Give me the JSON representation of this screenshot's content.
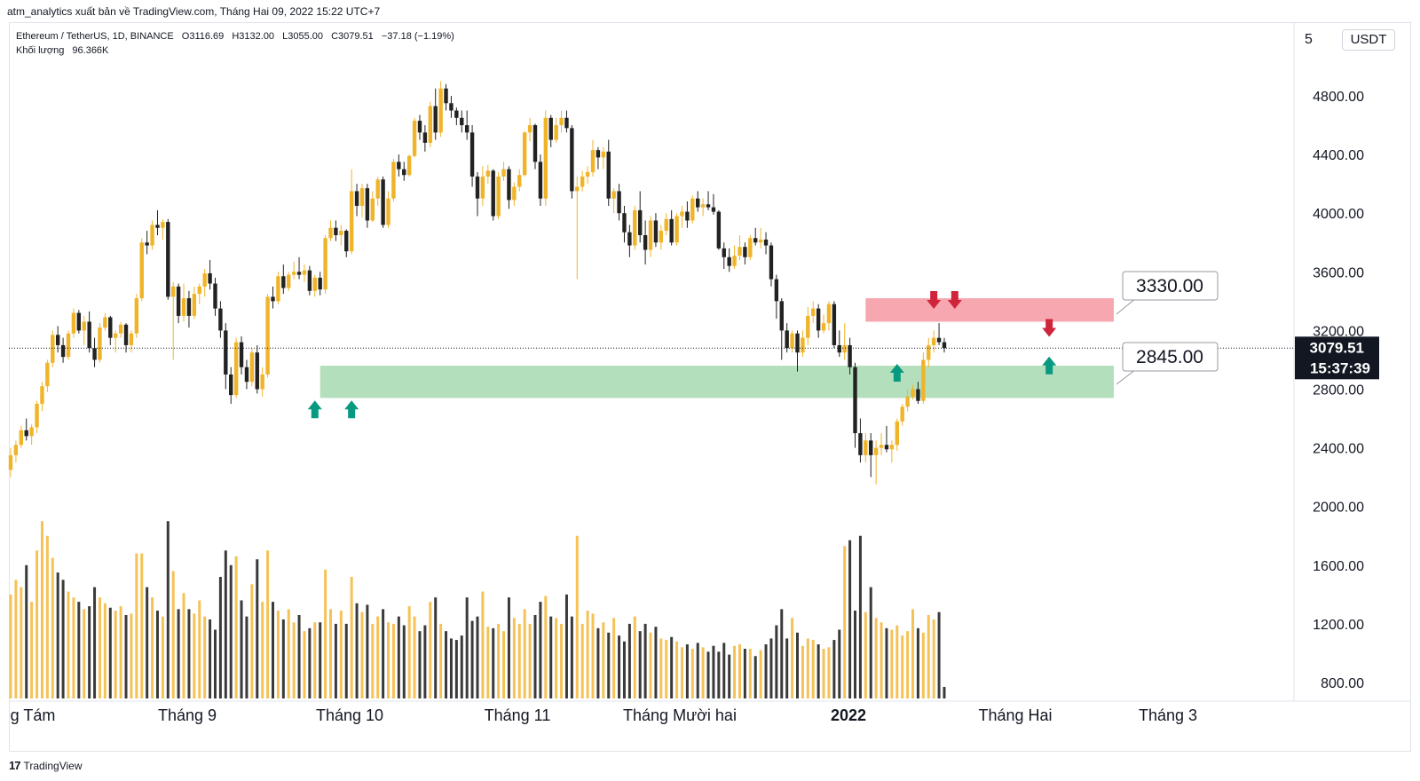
{
  "header": {
    "attribution": "atm_analytics xuất bản về TradingView.com, Tháng Hai 09, 2022 15:22 UTC+7"
  },
  "legend": {
    "symbol": "Ethereum / TetherUS, 1D, BINANCE",
    "open": "O3116.69",
    "high": "H3132.00",
    "low": "L3055.00",
    "close": "C3079.51",
    "change": "−37.18 (−1.19%)",
    "volume_label": "Khối lượng",
    "volume_value": "96.366K"
  },
  "currency": "USDT",
  "footer": {
    "logo_mark": "17",
    "brand": "TradingView"
  },
  "chart_data": {
    "type": "candlestick",
    "price_axis": {
      "scale": "linear",
      "ticks": [
        800,
        1200,
        1600,
        2000,
        2400,
        2800,
        3200,
        3600,
        4000,
        4400,
        4800
      ],
      "top_label_partial": "5"
    },
    "time_axis": {
      "labels": [
        "g Tám",
        "Tháng 9",
        "Tháng 10",
        "Tháng 11",
        "Tháng Mười hai",
        "2022",
        "Tháng Hai",
        "Tháng 3"
      ]
    },
    "last_price": {
      "value": 3079.51,
      "label": "3079.51",
      "countdown": "15:37:39"
    },
    "zones": [
      {
        "kind": "resistance",
        "low": 3260,
        "high": 3420,
        "color": "#f7a7b0",
        "label": "3330.00"
      },
      {
        "kind": "support",
        "low": 2740,
        "high": 2960,
        "color": "#b4dfbc",
        "label": "2845.00"
      }
    ],
    "colors": {
      "up": "#f0b429",
      "down": "#222222",
      "up_volume": "#f5c258",
      "down_volume": "#3a3a3a",
      "support_arrow": "#089981",
      "resistance_arrow": "#d0243a"
    },
    "arrows": [
      {
        "type": "up",
        "date": "2021-09-21",
        "price": 2650
      },
      {
        "type": "up",
        "date": "2021-09-28",
        "price": 2650
      },
      {
        "type": "up",
        "date": "2022-01-10",
        "price": 2900
      },
      {
        "type": "down",
        "date": "2022-01-17",
        "price": 3420
      },
      {
        "type": "down",
        "date": "2022-01-21",
        "price": 3420
      },
      {
        "type": "up",
        "date": "2022-02-08",
        "price": 2950
      },
      {
        "type": "down",
        "date": "2022-02-08",
        "price": 3230
      }
    ],
    "start_date": "2021-07-25",
    "candles": [
      [
        2250,
        2400,
        2200,
        2350
      ],
      [
        2350,
        2450,
        2300,
        2420
      ],
      [
        2420,
        2550,
        2400,
        2520
      ],
      [
        2520,
        2600,
        2450,
        2480
      ],
      [
        2480,
        2560,
        2420,
        2540
      ],
      [
        2540,
        2720,
        2500,
        2700
      ],
      [
        2700,
        2850,
        2650,
        2820
      ],
      [
        2820,
        3000,
        2780,
        2980
      ],
      [
        2980,
        3200,
        2950,
        3170
      ],
      [
        3170,
        3230,
        3050,
        3100
      ],
      [
        3100,
        3150,
        2980,
        3020
      ],
      [
        3020,
        3200,
        3000,
        3180
      ],
      [
        3180,
        3350,
        3150,
        3320
      ],
      [
        3320,
        3340,
        3180,
        3200
      ],
      [
        3200,
        3300,
        3100,
        3260
      ],
      [
        3260,
        3330,
        3050,
        3080
      ],
      [
        3080,
        3150,
        2950,
        3000
      ],
      [
        3000,
        3250,
        2980,
        3220
      ],
      [
        3220,
        3320,
        3200,
        3290
      ],
      [
        3290,
        3300,
        3100,
        3150
      ],
      [
        3150,
        3200,
        3050,
        3180
      ],
      [
        3180,
        3260,
        3150,
        3240
      ],
      [
        3240,
        3250,
        3050,
        3100
      ],
      [
        3100,
        3200,
        3050,
        3180
      ],
      [
        3180,
        3450,
        3150,
        3420
      ],
      [
        3420,
        3830,
        3400,
        3800
      ],
      [
        3800,
        3880,
        3720,
        3780
      ],
      [
        3780,
        3950,
        3750,
        3920
      ],
      [
        3920,
        4020,
        3850,
        3900
      ],
      [
        3900,
        3960,
        3820,
        3940
      ],
      [
        3940,
        3960,
        3410,
        3430
      ],
      [
        3430,
        3530,
        3000,
        3500
      ],
      [
        3500,
        3520,
        3250,
        3300
      ],
      [
        3300,
        3520,
        3260,
        3420
      ],
      [
        3420,
        3470,
        3220,
        3300
      ],
      [
        3300,
        3500,
        3280,
        3450
      ],
      [
        3450,
        3520,
        3380,
        3500
      ],
      [
        3500,
        3620,
        3430,
        3590
      ],
      [
        3590,
        3680,
        3480,
        3520
      ],
      [
        3520,
        3560,
        3300,
        3350
      ],
      [
        3350,
        3400,
        3150,
        3200
      ],
      [
        3200,
        3250,
        2800,
        2900
      ],
      [
        2900,
        2950,
        2700,
        2760
      ],
      [
        2760,
        3150,
        2740,
        3120
      ],
      [
        3120,
        3160,
        2900,
        2950
      ],
      [
        2950,
        3000,
        2800,
        2850
      ],
      [
        2850,
        3080,
        2820,
        3050
      ],
      [
        3050,
        3100,
        2770,
        2800
      ],
      [
        2800,
        2950,
        2750,
        2900
      ],
      [
        2900,
        3450,
        2880,
        3430
      ],
      [
        3430,
        3500,
        3350,
        3400
      ],
      [
        3400,
        3600,
        3380,
        3570
      ],
      [
        3570,
        3650,
        3450,
        3490
      ],
      [
        3490,
        3600,
        3470,
        3580
      ],
      [
        3580,
        3670,
        3550,
        3600
      ],
      [
        3600,
        3700,
        3550,
        3580
      ],
      [
        3580,
        3650,
        3530,
        3610
      ],
      [
        3610,
        3640,
        3440,
        3470
      ],
      [
        3470,
        3580,
        3430,
        3560
      ],
      [
        3560,
        3600,
        3440,
        3480
      ],
      [
        3480,
        3850,
        3450,
        3830
      ],
      [
        3830,
        3950,
        3810,
        3900
      ],
      [
        3900,
        3950,
        3810,
        3850
      ],
      [
        3850,
        3920,
        3780,
        3880
      ],
      [
        3880,
        3890,
        3700,
        3740
      ],
      [
        3740,
        4300,
        3720,
        4150
      ],
      [
        4150,
        4200,
        3980,
        4050
      ],
      [
        4050,
        4200,
        3970,
        4170
      ],
      [
        4170,
        4200,
        3900,
        3950
      ],
      [
        3950,
        4150,
        3940,
        4100
      ],
      [
        4100,
        4250,
        4050,
        4230
      ],
      [
        4230,
        4250,
        3900,
        3920
      ],
      [
        3920,
        4150,
        3900,
        4100
      ],
      [
        4100,
        4370,
        4080,
        4350
      ],
      [
        4350,
        4400,
        4250,
        4300
      ],
      [
        4300,
        4350,
        4220,
        4260
      ],
      [
        4260,
        4400,
        4250,
        4390
      ],
      [
        4390,
        4650,
        4380,
        4630
      ],
      [
        4630,
        4670,
        4500,
        4550
      ],
      [
        4550,
        4600,
        4420,
        4480
      ],
      [
        4480,
        4760,
        4450,
        4730
      ],
      [
        4730,
        4850,
        4500,
        4550
      ],
      [
        4550,
        4900,
        4520,
        4850
      ],
      [
        4850,
        4880,
        4700,
        4750
      ],
      [
        4750,
        4800,
        4650,
        4700
      ],
      [
        4700,
        4720,
        4600,
        4650
      ],
      [
        4650,
        4700,
        4550,
        4600
      ],
      [
        4600,
        4700,
        4500,
        4550
      ],
      [
        4550,
        4600,
        4180,
        4250
      ],
      [
        4250,
        4280,
        3980,
        4100
      ],
      [
        4100,
        4320,
        4050,
        4250
      ],
      [
        4250,
        4330,
        4200,
        4290
      ],
      [
        4290,
        4300,
        3950,
        3980
      ],
      [
        3980,
        4280,
        3960,
        4250
      ],
      [
        4250,
        4350,
        4220,
        4300
      ],
      [
        4300,
        4320,
        4030,
        4090
      ],
      [
        4090,
        4210,
        4050,
        4180
      ],
      [
        4180,
        4300,
        4150,
        4260
      ],
      [
        4260,
        4560,
        4250,
        4550
      ],
      [
        4550,
        4650,
        4490,
        4600
      ],
      [
        4600,
        4610,
        4300,
        4350
      ],
      [
        4350,
        4400,
        4050,
        4100
      ],
      [
        4100,
        4700,
        4050,
        4650
      ],
      [
        4650,
        4670,
        4450,
        4500
      ],
      [
        4500,
        4650,
        4480,
        4600
      ],
      [
        4600,
        4700,
        4550,
        4650
      ],
      [
        4650,
        4700,
        4550,
        4580
      ],
      [
        4580,
        4600,
        4100,
        4150
      ],
      [
        4150,
        4250,
        3550,
        4180
      ],
      [
        4180,
        4290,
        4150,
        4250
      ],
      [
        4250,
        4320,
        4200,
        4280
      ],
      [
        4280,
        4500,
        4250,
        4430
      ],
      [
        4430,
        4450,
        4300,
        4380
      ],
      [
        4380,
        4450,
        4300,
        4420
      ],
      [
        4420,
        4500,
        4050,
        4100
      ],
      [
        4100,
        4170,
        4000,
        4150
      ],
      [
        4150,
        4200,
        3950,
        4000
      ],
      [
        4000,
        4050,
        3800,
        3870
      ],
      [
        3870,
        3920,
        3700,
        3780
      ],
      [
        3780,
        4050,
        3750,
        4020
      ],
      [
        4020,
        4150,
        3800,
        3850
      ],
      [
        3850,
        3950,
        3650,
        3750
      ],
      [
        3750,
        3980,
        3700,
        3950
      ],
      [
        3950,
        4000,
        3770,
        3800
      ],
      [
        3800,
        3920,
        3750,
        3880
      ],
      [
        3880,
        4000,
        3850,
        3960
      ],
      [
        3960,
        4020,
        3780,
        3800
      ],
      [
        3800,
        4000,
        3780,
        3980
      ],
      [
        3980,
        4050,
        3900,
        4010
      ],
      [
        4010,
        4080,
        3900,
        3950
      ],
      [
        3950,
        4120,
        3930,
        4100
      ],
      [
        4100,
        4150,
        4010,
        4040
      ],
      [
        4040,
        4100,
        3980,
        4060
      ],
      [
        4060,
        4150,
        4020,
        4040
      ],
      [
        4040,
        4130,
        3990,
        4010
      ],
      [
        4010,
        4020,
        3750,
        3760
      ],
      [
        3760,
        3800,
        3620,
        3700
      ],
      [
        3700,
        3760,
        3600,
        3640
      ],
      [
        3640,
        3780,
        3620,
        3710
      ],
      [
        3710,
        3850,
        3680,
        3770
      ],
      [
        3770,
        3800,
        3650,
        3700
      ],
      [
        3700,
        3850,
        3680,
        3830
      ],
      [
        3830,
        3900,
        3780,
        3800
      ],
      [
        3800,
        3900,
        3760,
        3820
      ],
      [
        3820,
        3870,
        3720,
        3780
      ],
      [
        3780,
        3800,
        3500,
        3550
      ],
      [
        3550,
        3580,
        3280,
        3400
      ],
      [
        3400,
        3420,
        3000,
        3200
      ],
      [
        3200,
        3250,
        3050,
        3080
      ],
      [
        3080,
        3200,
        3050,
        3180
      ],
      [
        3180,
        3200,
        2920,
        3050
      ],
      [
        3050,
        3200,
        3020,
        3150
      ],
      [
        3150,
        3360,
        3100,
        3300
      ],
      [
        3300,
        3400,
        3250,
        3350
      ],
      [
        3350,
        3380,
        3150,
        3200
      ],
      [
        3200,
        3310,
        3180,
        3250
      ],
      [
        3250,
        3400,
        3200,
        3380
      ],
      [
        3380,
        3400,
        3080,
        3100
      ],
      [
        3100,
        3200,
        3020,
        3050
      ],
      [
        3050,
        3250,
        3000,
        3100
      ],
      [
        3100,
        3150,
        2900,
        2950
      ],
      [
        2950,
        2980,
        2400,
        2500
      ],
      [
        2500,
        2600,
        2300,
        2350
      ],
      [
        2350,
        2500,
        2300,
        2450
      ],
      [
        2450,
        2500,
        2200,
        2350
      ],
      [
        2350,
        2450,
        2150,
        2400
      ],
      [
        2400,
        2500,
        2350,
        2420
      ],
      [
        2420,
        2550,
        2370,
        2390
      ],
      [
        2390,
        2450,
        2300,
        2420
      ],
      [
        2420,
        2600,
        2380,
        2580
      ],
      [
        2580,
        2700,
        2550,
        2680
      ],
      [
        2680,
        2800,
        2650,
        2750
      ],
      [
        2750,
        2830,
        2730,
        2800
      ],
      [
        2800,
        2850,
        2700,
        2720
      ],
      [
        2720,
        3050,
        2700,
        3000
      ],
      [
        3000,
        3150,
        2950,
        3100
      ],
      [
        3100,
        3200,
        3050,
        3150
      ],
      [
        3150,
        3250,
        3100,
        3120
      ],
      [
        3120,
        3150,
        3050,
        3080
      ]
    ],
    "volumes": [
      1400,
      1500,
      1450,
      1600,
      1350,
      1700,
      1900,
      1800,
      1650,
      1550,
      1500,
      1420,
      1380,
      1350,
      1300,
      1320,
      1450,
      1380,
      1340,
      1310,
      1290,
      1320,
      1260,
      1270,
      1680,
      1680,
      1450,
      1380,
      1290,
      1250,
      1900,
      1560,
      1300,
      1410,
      1300,
      1270,
      1360,
      1250,
      1230,
      1160,
      1520,
      1700,
      1600,
      1660,
      1360,
      1250,
      1470,
      1640,
      1350,
      1700,
      1350,
      1290,
      1230,
      1300,
      1210,
      1260,
      1150,
      1170,
      1210,
      1210,
      1570,
      1300,
      1200,
      1290,
      1200,
      1520,
      1340,
      1280,
      1330,
      1200,
      1250,
      1300,
      1210,
      1200,
      1250,
      1190,
      1320,
      1250,
      1150,
      1190,
      1350,
      1380,
      1200,
      1150,
      1100,
      1090,
      1120,
      1380,
      1220,
      1250,
      1420,
      1180,
      1170,
      1200,
      1150,
      1380,
      1240,
      1200,
      1300,
      1200,
      1260,
      1350,
      1390,
      1250,
      1240,
      1200,
      1400,
      1250,
      1800,
      1200,
      1290,
      1270,
      1170,
      1210,
      1140,
      1240,
      1120,
      1080,
      1200,
      1250,
      1150,
      1200,
      1140,
      1180,
      1100,
      1090,
      1110,
      1080,
      1040,
      1060,
      1030,
      1070,
      1040,
      1010,
      1050,
      1010,
      1070,
      990,
      1050,
      1060,
      1030,
      1030,
      980,
      1020,
      1060,
      1100,
      1190,
      1300,
      1100,
      1240,
      1140,
      1050,
      1100,
      1090,
      1060,
      1030,
      1040,
      1090,
      1160,
      1730,
      1770,
      1290,
      1800,
      1280,
      1450,
      1240,
      1210,
      1170,
      1160,
      1190,
      1120,
      1150,
      1300,
      1170,
      1140,
      1260,
      1230,
      1280,
      770
    ]
  }
}
